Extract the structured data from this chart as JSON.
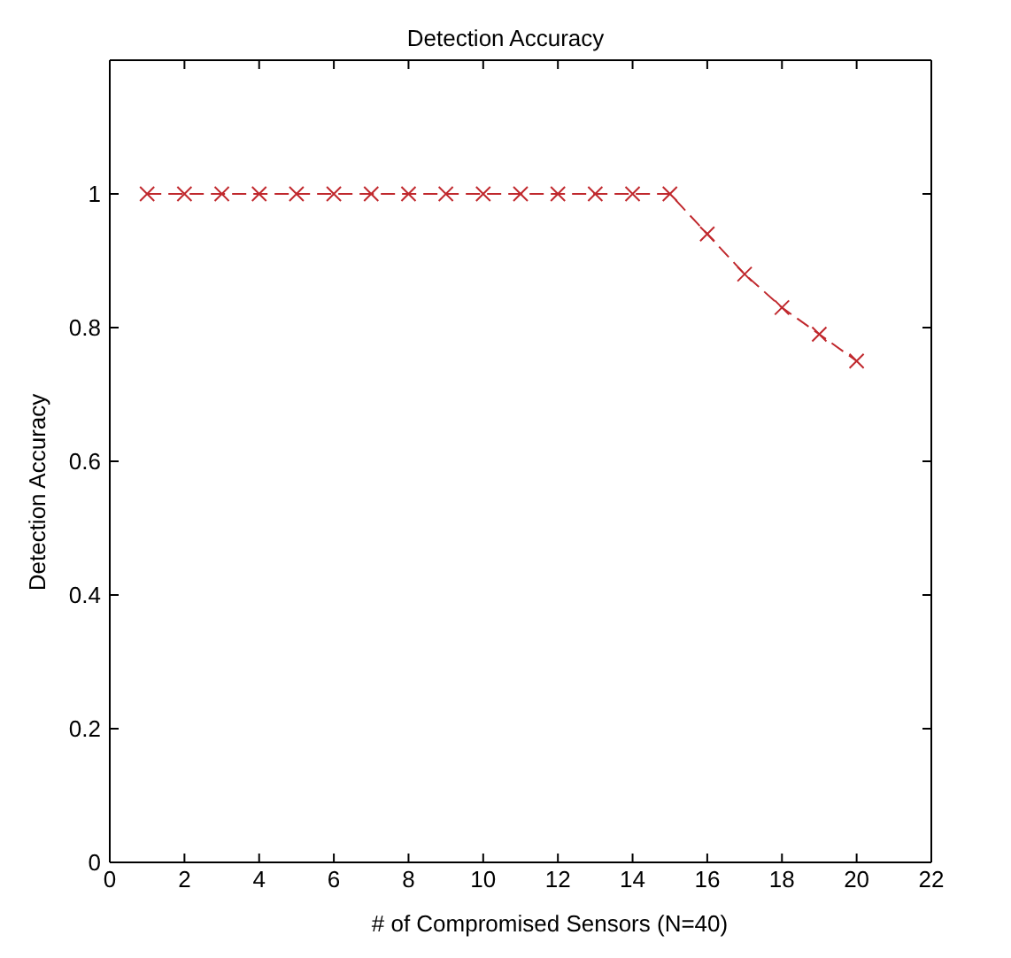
{
  "chart_data": {
    "type": "line",
    "title": "Detection Accuracy",
    "xlabel": "# of Compromised Sensors (N=40)",
    "ylabel": "Detection Accuracy",
    "x": [
      1,
      2,
      3,
      4,
      5,
      6,
      7,
      8,
      9,
      10,
      11,
      12,
      13,
      14,
      15,
      16,
      17,
      18,
      19,
      20
    ],
    "series": [
      {
        "color": "#c0282d",
        "values": [
          1,
          1,
          1,
          1,
          1,
          1,
          1,
          1,
          1,
          1,
          1,
          1,
          1,
          1,
          1,
          0.94,
          0.88,
          0.83,
          0.79,
          0.75
        ]
      }
    ],
    "xlim": [
      0,
      22
    ],
    "xticks": [
      0,
      2,
      4,
      6,
      8,
      10,
      12,
      14,
      16,
      18,
      20,
      22
    ],
    "ylim": [
      0,
      1.2
    ],
    "yticks": [
      0,
      0.2,
      0.4,
      0.6,
      0.8,
      1
    ],
    "grid": false,
    "legend": false,
    "marker": "cross",
    "line_style": "dashed"
  }
}
